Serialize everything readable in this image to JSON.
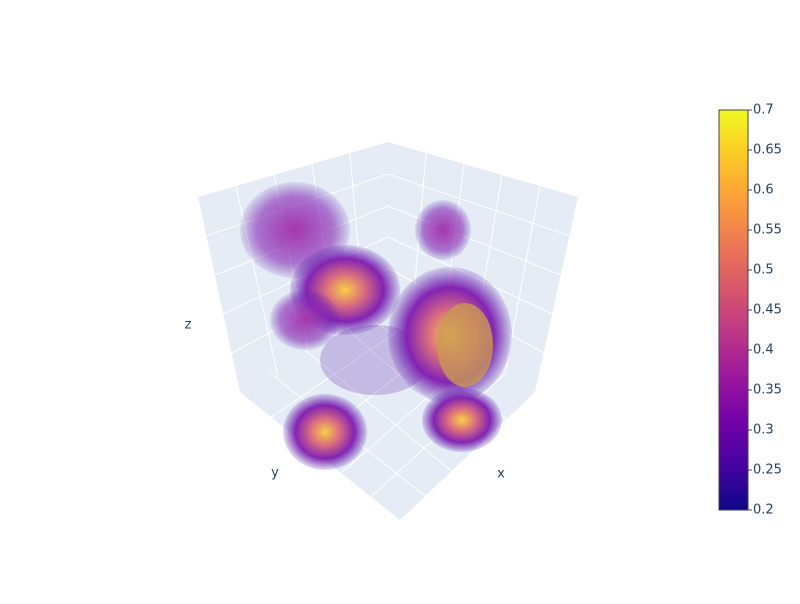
{
  "chart_data": {
    "type": "volume",
    "scene": {
      "xaxis_title": "x",
      "yaxis_title": "y",
      "zaxis_title": "z"
    },
    "colorbar": {
      "range": [
        0.2,
        0.7
      ],
      "ticks": [
        0.2,
        0.25,
        0.3,
        0.35,
        0.4,
        0.45,
        0.5,
        0.55,
        0.6,
        0.65,
        0.7
      ],
      "colorscale": [
        "#0d0887",
        "#46039f",
        "#7201a8",
        "#9c179e",
        "#bd3786",
        "#d8576b",
        "#ed7953",
        "#fb9f3a",
        "#fdca26",
        "#f0f921"
      ]
    }
  }
}
